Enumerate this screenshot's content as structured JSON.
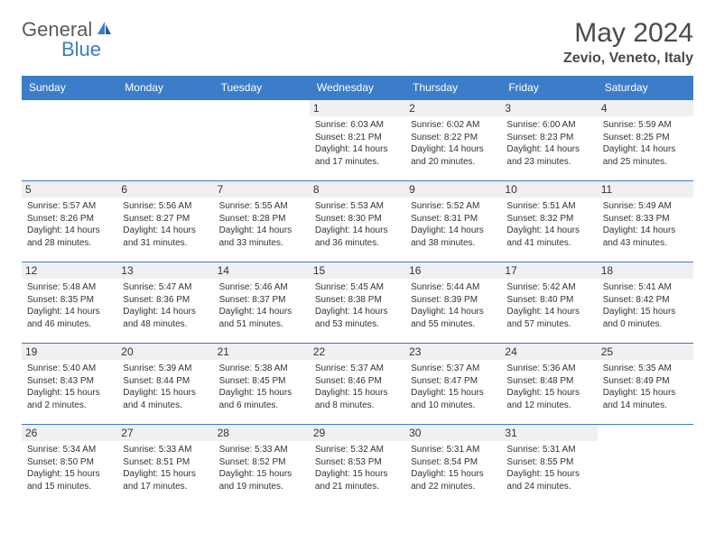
{
  "logo": {
    "text1": "General",
    "text2": "Blue"
  },
  "title": "May 2024",
  "location": "Zevio, Veneto, Italy",
  "colors": {
    "header_bg": "#3d7cc9",
    "header_text": "#ffffff",
    "row_border": "#3d7cc9",
    "daynum_bg": "#f0f0f0",
    "text": "#333333",
    "logo_gray": "#5a5a5a",
    "logo_blue": "#3d7cc9"
  },
  "day_headers": [
    "Sunday",
    "Monday",
    "Tuesday",
    "Wednesday",
    "Thursday",
    "Friday",
    "Saturday"
  ],
  "weeks": [
    [
      null,
      null,
      null,
      {
        "n": "1",
        "sr": "6:03 AM",
        "ss": "8:21 PM",
        "dl": "14 hours and 17 minutes."
      },
      {
        "n": "2",
        "sr": "6:02 AM",
        "ss": "8:22 PM",
        "dl": "14 hours and 20 minutes."
      },
      {
        "n": "3",
        "sr": "6:00 AM",
        "ss": "8:23 PM",
        "dl": "14 hours and 23 minutes."
      },
      {
        "n": "4",
        "sr": "5:59 AM",
        "ss": "8:25 PM",
        "dl": "14 hours and 25 minutes."
      }
    ],
    [
      {
        "n": "5",
        "sr": "5:57 AM",
        "ss": "8:26 PM",
        "dl": "14 hours and 28 minutes."
      },
      {
        "n": "6",
        "sr": "5:56 AM",
        "ss": "8:27 PM",
        "dl": "14 hours and 31 minutes."
      },
      {
        "n": "7",
        "sr": "5:55 AM",
        "ss": "8:28 PM",
        "dl": "14 hours and 33 minutes."
      },
      {
        "n": "8",
        "sr": "5:53 AM",
        "ss": "8:30 PM",
        "dl": "14 hours and 36 minutes."
      },
      {
        "n": "9",
        "sr": "5:52 AM",
        "ss": "8:31 PM",
        "dl": "14 hours and 38 minutes."
      },
      {
        "n": "10",
        "sr": "5:51 AM",
        "ss": "8:32 PM",
        "dl": "14 hours and 41 minutes."
      },
      {
        "n": "11",
        "sr": "5:49 AM",
        "ss": "8:33 PM",
        "dl": "14 hours and 43 minutes."
      }
    ],
    [
      {
        "n": "12",
        "sr": "5:48 AM",
        "ss": "8:35 PM",
        "dl": "14 hours and 46 minutes."
      },
      {
        "n": "13",
        "sr": "5:47 AM",
        "ss": "8:36 PM",
        "dl": "14 hours and 48 minutes."
      },
      {
        "n": "14",
        "sr": "5:46 AM",
        "ss": "8:37 PM",
        "dl": "14 hours and 51 minutes."
      },
      {
        "n": "15",
        "sr": "5:45 AM",
        "ss": "8:38 PM",
        "dl": "14 hours and 53 minutes."
      },
      {
        "n": "16",
        "sr": "5:44 AM",
        "ss": "8:39 PM",
        "dl": "14 hours and 55 minutes."
      },
      {
        "n": "17",
        "sr": "5:42 AM",
        "ss": "8:40 PM",
        "dl": "14 hours and 57 minutes."
      },
      {
        "n": "18",
        "sr": "5:41 AM",
        "ss": "8:42 PM",
        "dl": "15 hours and 0 minutes."
      }
    ],
    [
      {
        "n": "19",
        "sr": "5:40 AM",
        "ss": "8:43 PM",
        "dl": "15 hours and 2 minutes."
      },
      {
        "n": "20",
        "sr": "5:39 AM",
        "ss": "8:44 PM",
        "dl": "15 hours and 4 minutes."
      },
      {
        "n": "21",
        "sr": "5:38 AM",
        "ss": "8:45 PM",
        "dl": "15 hours and 6 minutes."
      },
      {
        "n": "22",
        "sr": "5:37 AM",
        "ss": "8:46 PM",
        "dl": "15 hours and 8 minutes."
      },
      {
        "n": "23",
        "sr": "5:37 AM",
        "ss": "8:47 PM",
        "dl": "15 hours and 10 minutes."
      },
      {
        "n": "24",
        "sr": "5:36 AM",
        "ss": "8:48 PM",
        "dl": "15 hours and 12 minutes."
      },
      {
        "n": "25",
        "sr": "5:35 AM",
        "ss": "8:49 PM",
        "dl": "15 hours and 14 minutes."
      }
    ],
    [
      {
        "n": "26",
        "sr": "5:34 AM",
        "ss": "8:50 PM",
        "dl": "15 hours and 15 minutes."
      },
      {
        "n": "27",
        "sr": "5:33 AM",
        "ss": "8:51 PM",
        "dl": "15 hours and 17 minutes."
      },
      {
        "n": "28",
        "sr": "5:33 AM",
        "ss": "8:52 PM",
        "dl": "15 hours and 19 minutes."
      },
      {
        "n": "29",
        "sr": "5:32 AM",
        "ss": "8:53 PM",
        "dl": "15 hours and 21 minutes."
      },
      {
        "n": "30",
        "sr": "5:31 AM",
        "ss": "8:54 PM",
        "dl": "15 hours and 22 minutes."
      },
      {
        "n": "31",
        "sr": "5:31 AM",
        "ss": "8:55 PM",
        "dl": "15 hours and 24 minutes."
      },
      null
    ]
  ],
  "labels": {
    "sunrise": "Sunrise:",
    "sunset": "Sunset:",
    "daylight": "Daylight:"
  }
}
